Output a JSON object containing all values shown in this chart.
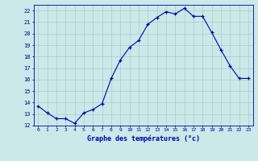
{
  "hours": [
    0,
    1,
    2,
    3,
    4,
    5,
    6,
    7,
    8,
    9,
    10,
    11,
    12,
    13,
    14,
    15,
    16,
    17,
    18,
    19,
    20,
    21,
    22,
    23
  ],
  "temps": [
    13.7,
    13.1,
    12.6,
    12.6,
    12.2,
    13.1,
    13.4,
    13.9,
    16.1,
    17.7,
    18.8,
    19.4,
    20.8,
    21.4,
    21.9,
    21.7,
    22.2,
    21.5,
    21.5,
    20.1,
    18.6,
    17.2,
    16.1,
    16.1
  ],
  "ylim": [
    12,
    22.5
  ],
  "yticks": [
    12,
    13,
    14,
    15,
    16,
    17,
    18,
    19,
    20,
    21,
    22
  ],
  "xlabel": "Graphe des températures (°c)",
  "bg_color": "#cce8e8",
  "line_color": "#0000aa",
  "grid_color": "#aacccc",
  "axis_color": "#0000aa",
  "label_color": "#0000aa",
  "font_name": "monospace",
  "fig_width": 3.2,
  "fig_height": 2.0,
  "dpi": 100
}
